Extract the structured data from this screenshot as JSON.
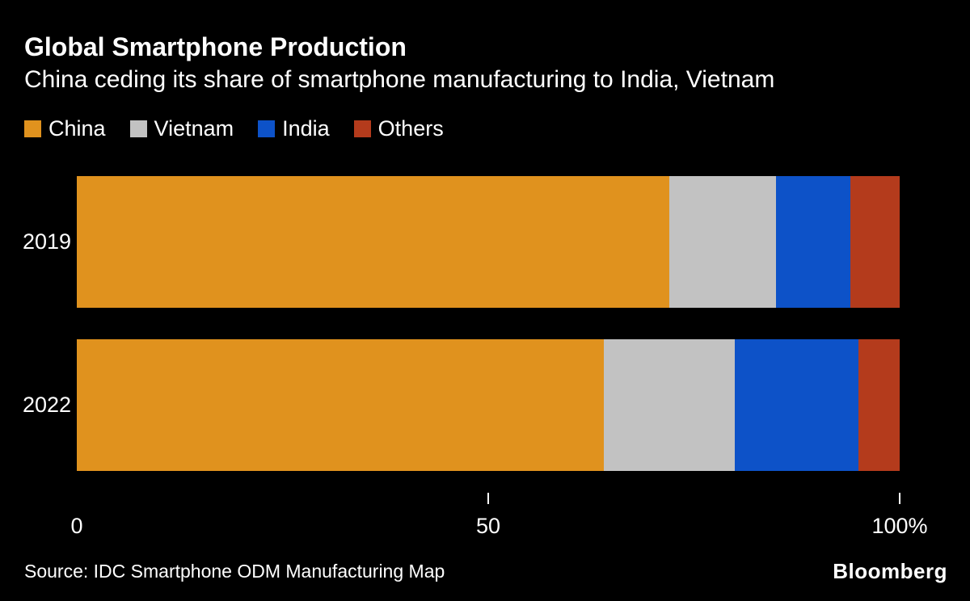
{
  "header": {
    "title": "Global Smartphone Production",
    "subtitle": "China ceding its share of smartphone manufacturing to India, Vietnam"
  },
  "legend": [
    {
      "label": "China",
      "color": "#E0921E"
    },
    {
      "label": "Vietnam",
      "color": "#C2C2C2"
    },
    {
      "label": "India",
      "color": "#0D52C8"
    },
    {
      "label": "Others",
      "color": "#B43B1C"
    }
  ],
  "chart_data": {
    "type": "bar",
    "orientation": "horizontal",
    "stacked": true,
    "title": "Global Smartphone Production",
    "subtitle": "China ceding its share of smartphone manufacturing to India, Vietnam",
    "unit": "percent",
    "xlim": [
      0,
      100
    ],
    "categories": [
      "2019",
      "2022"
    ],
    "series": [
      {
        "name": "China",
        "color": "#E0921E",
        "values": [
          72,
          64
        ]
      },
      {
        "name": "Vietnam",
        "color": "#C2C2C2",
        "values": [
          13,
          16
        ]
      },
      {
        "name": "India",
        "color": "#0D52C8",
        "values": [
          9,
          15
        ]
      },
      {
        "name": "Others",
        "color": "#B43B1C",
        "values": [
          6,
          5
        ]
      }
    ],
    "x_axis": [
      {
        "value": 0,
        "label": "0",
        "tick": false
      },
      {
        "value": 50,
        "label": "50",
        "tick": true
      },
      {
        "value": 100,
        "label": "100%",
        "tick": true
      }
    ],
    "legend_position": "top",
    "grid": false
  },
  "footer": {
    "source": "Source: IDC Smartphone ODM Manufacturing Map",
    "brand": "Bloomberg"
  }
}
